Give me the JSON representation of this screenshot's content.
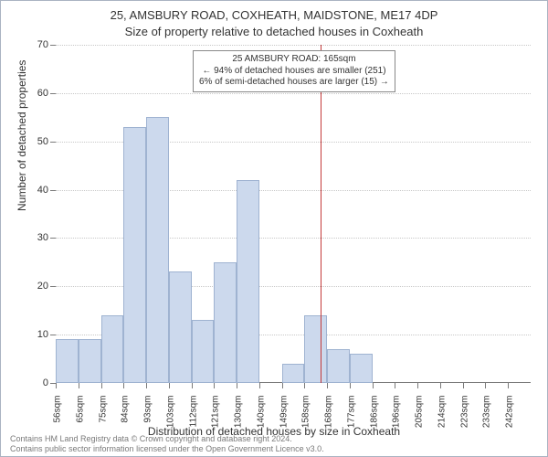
{
  "chart": {
    "type": "histogram",
    "title_line1": "25, AMSBURY ROAD, COXHEATH, MAIDSTONE, ME17 4DP",
    "title_line2": "Size of property relative to detached houses in Coxheath",
    "background_color": "#ffffff",
    "grid_color": "#c8c8c8",
    "axis_color": "#7a7a7a",
    "bar_fill": "#ccd9ed",
    "bar_border": "#9fb3d1",
    "marker_color": "#c43a3a",
    "title_fontsize": 13,
    "label_fontsize": 12,
    "tick_fontsize": 11,
    "ylabel": "Number of detached properties",
    "xlabel": "Distribution of detached houses by size in Coxheath",
    "ylim": [
      0,
      70
    ],
    "ytick_step": 10,
    "yticks": [
      0,
      10,
      20,
      30,
      40,
      50,
      60,
      70
    ],
    "xticks": [
      "56sqm",
      "65sqm",
      "75sqm",
      "84sqm",
      "93sqm",
      "103sqm",
      "112sqm",
      "121sqm",
      "130sqm",
      "140sqm",
      "149sqm",
      "158sqm",
      "168sqm",
      "177sqm",
      "186sqm",
      "196sqm",
      "205sqm",
      "214sqm",
      "223sqm",
      "233sqm",
      "242sqm"
    ],
    "values": [
      9,
      9,
      14,
      53,
      55,
      23,
      13,
      25,
      42,
      0,
      4,
      14,
      7,
      6,
      0,
      0,
      0,
      0,
      0,
      0,
      0
    ],
    "marker_bin_index": 12,
    "annotation": {
      "line1": "25 AMSBURY ROAD: 165sqm",
      "line2": "← 94% of detached houses are smaller (251)",
      "line3": "6% of semi-detached houses are larger (15) →"
    },
    "footer_line1": "Contains HM Land Registry data © Crown copyright and database right 2024.",
    "footer_line2": "Contains public sector information licensed under the Open Government Licence v3.0."
  }
}
